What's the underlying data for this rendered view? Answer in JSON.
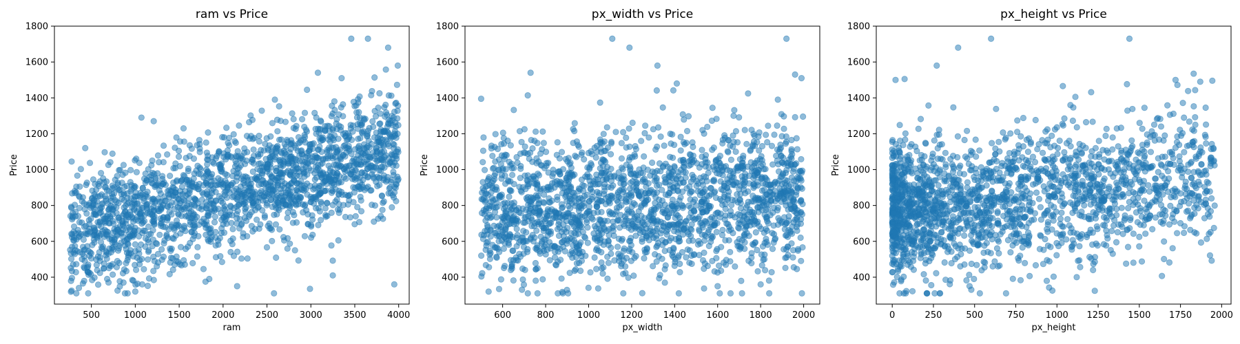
{
  "chart_data": [
    {
      "type": "scatter",
      "title": "ram vs Price",
      "xlabel": "ram",
      "ylabel": "Price",
      "xlim": [
        79,
        4120
      ],
      "ylim": [
        250,
        1800
      ],
      "xticks": [
        500,
        1000,
        1500,
        2000,
        2500,
        3000,
        3500,
        4000
      ],
      "yticks": [
        400,
        600,
        800,
        1000,
        1200,
        1400,
        1600,
        1800
      ],
      "color": "#1f77b4",
      "alpha": 0.5,
      "n_points": 2000,
      "x_domain": [
        256,
        3998
      ],
      "trend": {
        "slope": 0.13,
        "intercept": 600,
        "spread": 165
      },
      "points": [
        [
          3460,
          1730
        ],
        [
          3650,
          1730
        ],
        [
          3880,
          1680
        ],
        [
          3990,
          1580
        ],
        [
          3350,
          1510
        ],
        [
          3080,
          1540
        ],
        [
          2580,
          310
        ],
        [
          2590,
          1390
        ],
        [
          3950,
          360
        ],
        [
          275,
          1045
        ],
        [
          430,
          1120
        ],
        [
          1070,
          1290
        ],
        [
          1210,
          1270
        ],
        [
          1000,
          320
        ],
        [
          680,
          390
        ],
        [
          2160,
          350
        ],
        [
          2990,
          335
        ],
        [
          3250,
          410
        ],
        [
          1800,
          375
        ],
        [
          1550,
          1230
        ]
      ]
    },
    {
      "type": "scatter",
      "title": "px_width vs Price",
      "xlabel": "px_width",
      "ylabel": "Price",
      "xlim": [
        425,
        2075
      ],
      "ylim": [
        250,
        1800
      ],
      "xticks": [
        600,
        800,
        1000,
        1200,
        1400,
        1600,
        1800,
        2000
      ],
      "yticks": [
        400,
        600,
        800,
        1000,
        1200,
        1400,
        1600,
        1800
      ],
      "color": "#1f77b4",
      "alpha": 0.5,
      "n_points": 2000,
      "x_domain": [
        500,
        1998
      ],
      "trend": {
        "slope": 0.06,
        "intercept": 730,
        "spread": 200
      },
      "points": [
        [
          1110,
          1730
        ],
        [
          1190,
          1680
        ],
        [
          1920,
          1730
        ],
        [
          1320,
          1580
        ],
        [
          730,
          1540
        ],
        [
          880,
          310
        ],
        [
          1660,
          310
        ],
        [
          500,
          1395
        ],
        [
          1960,
          1530
        ],
        [
          1990,
          1510
        ],
        [
          1880,
          1390
        ],
        [
          1410,
          1480
        ],
        [
          690,
          330
        ],
        [
          1600,
          350
        ],
        [
          1800,
          360
        ]
      ]
    },
    {
      "type": "scatter",
      "title": "px_height vs Price",
      "xlabel": "px_height",
      "ylabel": "Price",
      "xlim": [
        -97,
        2057
      ],
      "ylim": [
        250,
        1800
      ],
      "xticks": [
        0,
        250,
        500,
        750,
        1000,
        1250,
        1500,
        1750,
        2000
      ],
      "yticks": [
        400,
        600,
        800,
        1000,
        1200,
        1400,
        1600,
        1800
      ],
      "color": "#1f77b4",
      "alpha": 0.5,
      "n_points": 2000,
      "x_domain": [
        0,
        1960
      ],
      "x_skew": 1.7,
      "trend": {
        "slope": 0.09,
        "intercept": 770,
        "spread": 190
      },
      "points": [
        [
          600,
          1730
        ],
        [
          1440,
          1730
        ],
        [
          400,
          1680
        ],
        [
          270,
          1580
        ],
        [
          20,
          1500
        ],
        [
          75,
          1505
        ],
        [
          1830,
          1535
        ],
        [
          1720,
          1500
        ],
        [
          1870,
          1490
        ],
        [
          1950,
          1115
        ],
        [
          1900,
          870
        ],
        [
          1700,
          730
        ],
        [
          70,
          310
        ],
        [
          210,
          310
        ],
        [
          480,
          330
        ],
        [
          1500,
          625
        ],
        [
          1560,
          730
        ],
        [
          1120,
          400
        ],
        [
          1950,
          1120
        ],
        [
          1840,
          1250
        ]
      ]
    }
  ]
}
